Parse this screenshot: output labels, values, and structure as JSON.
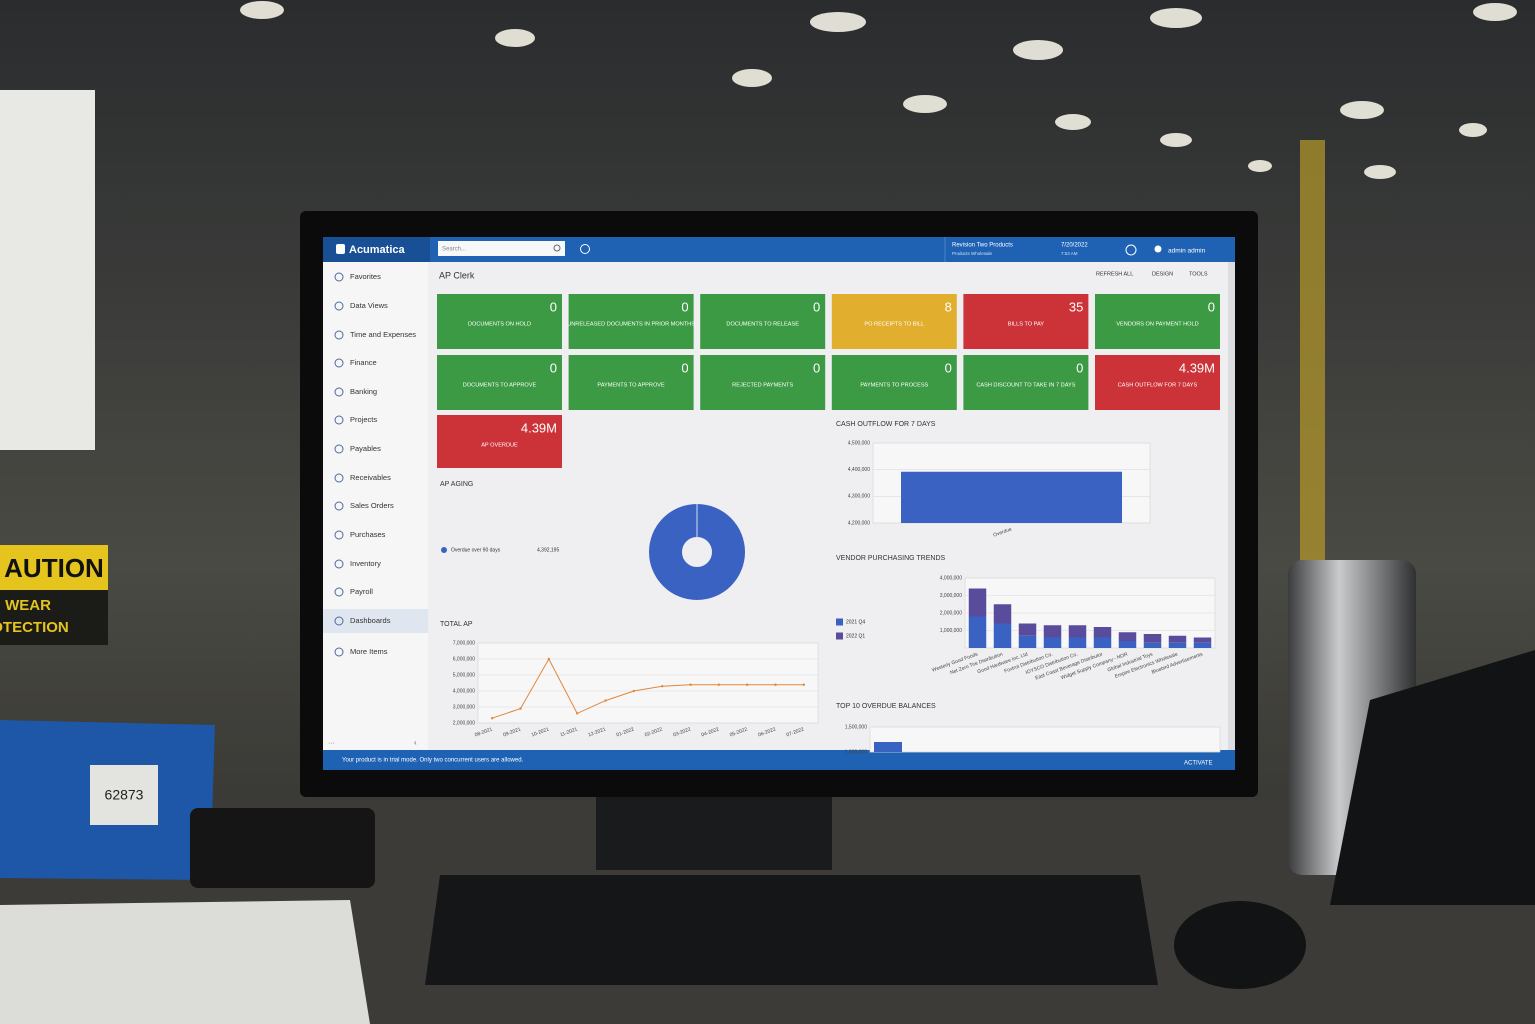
{
  "header": {
    "logo": "Acumatica",
    "search_placeholder": "Search...",
    "company": "Revision Two Products",
    "branch": "Products Wholesale",
    "date": "7/20/2022",
    "time": "7:53 AM",
    "user": "admin admin"
  },
  "sidebar": {
    "items": [
      "Favorites",
      "Data Views",
      "Time and Expenses",
      "Finance",
      "Banking",
      "Projects",
      "Payables",
      "Receivables",
      "Sales Orders",
      "Purchases",
      "Inventory",
      "Payroll",
      "Dashboards",
      "More Items"
    ],
    "active": 12
  },
  "page": {
    "title": "AP Clerk",
    "actions": [
      "REFRESH ALL",
      "DESIGN",
      "TOOLS"
    ]
  },
  "tiles": [
    {
      "value": 0,
      "label": "DOCUMENTS ON HOLD",
      "color": "#3c9a44"
    },
    {
      "value": 0,
      "label": "UNRELEASED DOCUMENTS IN PRIOR MONTHS",
      "color": "#3c9a44"
    },
    {
      "value": 0,
      "label": "DOCUMENTS TO RELEASE",
      "color": "#3c9a44"
    },
    {
      "value": 8,
      "label": "PO RECEIPTS TO BILL",
      "color": "#e2ae2e"
    },
    {
      "value": 35,
      "label": "BILLS TO PAY",
      "color": "#cc3339"
    },
    {
      "value": 0,
      "label": "VENDORS ON PAYMENT HOLD",
      "color": "#3c9a44"
    },
    {
      "value": 0,
      "label": "DOCUMENTS TO APPROVE",
      "color": "#3c9a44"
    },
    {
      "value": 0,
      "label": "PAYMENTS TO APPROVE",
      "color": "#3c9a44"
    },
    {
      "value": 0,
      "label": "REJECTED PAYMENTS",
      "color": "#3c9a44"
    },
    {
      "value": 0,
      "label": "PAYMENTS TO PROCESS",
      "color": "#3c9a44"
    },
    {
      "value": 0,
      "label": "CASH DISCOUNT TO TAKE IN 7 DAYS",
      "color": "#3c9a44"
    },
    {
      "value": "4.39M",
      "label": "CASH OUTFLOW FOR 7 DAYS",
      "color": "#cc3339"
    },
    {
      "value": "4.39M",
      "label": "AP OVERDUE",
      "color": "#cc3339"
    }
  ],
  "chart_data": [
    {
      "type": "pie",
      "title": "AP AGING",
      "categories": [
        "Overdue over 90 days"
      ],
      "values": [
        4392195
      ],
      "value_labels": [
        "4,392,195"
      ],
      "colors": [
        "#3a62c2"
      ]
    },
    {
      "type": "bar",
      "title": "CASH OUTFLOW FOR 7 DAYS",
      "categories": [
        "Overdue"
      ],
      "values": [
        4392195
      ],
      "color": "#3a62c2",
      "ylim": [
        4200000,
        4500000
      ],
      "yticks": [
        {
          "value": 4200000,
          "label": "4,200,000"
        },
        {
          "value": 4300000,
          "label": "4,300,000"
        },
        {
          "value": 4400000,
          "label": "4,400,000"
        },
        {
          "value": 4500000,
          "label": "4,500,000"
        }
      ],
      "grid": true
    },
    {
      "type": "stacked-bar",
      "title": "VENDOR PURCHASING TRENDS",
      "categories": [
        "Westerly Good Foods",
        "Net Zero Tire Distribution",
        "Good Hardware Inc. Ltd",
        "Foxtrot Distribution Co.",
        "IOYSCO Distribution Co.",
        "East Coast Beverage Distributor",
        "Widget Supply Company - NOR",
        "Global Industrial Toys",
        "Empire Electronics Wholesale",
        "Bluebird Advertisements"
      ],
      "series": [
        {
          "name": "2021 Q4",
          "color": "#3a62c2",
          "values": [
            1800000,
            1400000,
            700000,
            600000,
            600000,
            600000,
            400000,
            300000,
            300000,
            300000
          ]
        },
        {
          "name": "2022 Q1",
          "color": "#5a4c9c",
          "values": [
            1600000,
            1100000,
            700000,
            700000,
            700000,
            600000,
            500000,
            500000,
            400000,
            300000
          ]
        }
      ],
      "ylim": [
        0,
        4000000
      ],
      "yticks": [
        {
          "value": 1000000,
          "label": "1,000,000"
        },
        {
          "value": 2000000,
          "label": "2,000,000"
        },
        {
          "value": 3000000,
          "label": "3,000,000"
        },
        {
          "value": 4000000,
          "label": "4,000,000"
        }
      ],
      "grid": true
    },
    {
      "type": "line",
      "title": "TOTAL AP",
      "categories": [
        "08-2021",
        "09-2021",
        "10-2021",
        "11-2021",
        "12-2021",
        "01-2022",
        "02-2022",
        "03-2022",
        "04-2022",
        "05-2022",
        "06-2022",
        "07-2022"
      ],
      "values": [
        2300000,
        2900000,
        6000000,
        2600000,
        3400000,
        4000000,
        4300000,
        4390000,
        4390000,
        4390000,
        4390000,
        4390000
      ],
      "color": "#e0873a",
      "ylim": [
        2000000,
        7000000
      ],
      "yticks": [
        {
          "value": 2000000,
          "label": "2,000,000"
        },
        {
          "value": 3000000,
          "label": "3,000,000"
        },
        {
          "value": 4000000,
          "label": "4,000,000"
        },
        {
          "value": 5000000,
          "label": "5,000,000"
        },
        {
          "value": 6000000,
          "label": "6,000,000"
        },
        {
          "value": 7000000,
          "label": "7,000,000"
        }
      ],
      "grid": true
    },
    {
      "type": "bar",
      "title": "TOP 10 OVERDUE BALANCES",
      "categories": [
        null
      ],
      "values": [
        1200000
      ],
      "color": "#3a62c2",
      "ylim": [
        1000000,
        1500000
      ],
      "yticks": [
        {
          "value": 1000000,
          "label": "1,000,000"
        },
        {
          "value": 1500000,
          "label": "1,500,000"
        }
      ],
      "grid": true
    }
  ],
  "footer": {
    "message": "Your product is in trial mode. Only two concurrent users are allowed.",
    "action": "ACTIVATE"
  },
  "photo": {
    "bin_label": "62873",
    "sign": [
      "AUTION",
      "WEAR",
      "OTECTION"
    ]
  }
}
